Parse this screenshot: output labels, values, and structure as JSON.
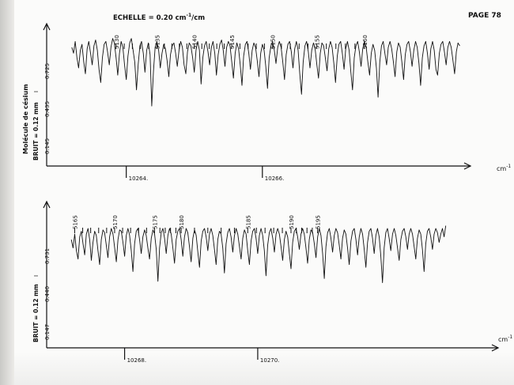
{
  "page": {
    "page_number": "PAGE 78",
    "scale_label": "ECHELLE = 0.20 cm-1/cm",
    "scale_label_parts": {
      "main": "ECHELLE = 0.20 cm",
      "sup": "-1",
      "tail": "/cm"
    },
    "molecule_label": "Molécule de césium"
  },
  "colors": {
    "ink": "#111111",
    "paper": "#fbfbfa"
  },
  "chart_data": [
    {
      "type": "line",
      "panel": "top",
      "x_unit": "cm-1",
      "x_unit_parts": {
        "main": "cm",
        "sup": "-1"
      },
      "x_ticks": [
        {
          "value": 10264,
          "label": "10264."
        },
        {
          "value": 10266,
          "label": "10266."
        }
      ],
      "xlim": [
        10262.9,
        10269.0
      ],
      "y_labels": [
        "0.145",
        "0.435",
        "0.725"
      ],
      "y_marker": "I",
      "noise_label": "BRUIT = 0.12 mm",
      "line_numbers": [
        {
          "label": "5130",
          "x": 10263.85
        },
        {
          "label": "5135",
          "x": 10264.45
        },
        {
          "label": "5140",
          "x": 10265.0
        },
        {
          "label": "5145",
          "x": 10265.55
        },
        {
          "label": "5150",
          "x": 10266.15
        },
        {
          "label": "5155",
          "x": 10266.8
        },
        {
          "label": "5160",
          "x": 10267.5
        }
      ],
      "series": [
        {
          "x_step": 0.025,
          "values": [
            0.62,
            0.58,
            0.66,
            0.55,
            0.48,
            0.6,
            0.64,
            0.52,
            0.44,
            0.61,
            0.66,
            0.58,
            0.5,
            0.63,
            0.67,
            0.6,
            0.47,
            0.38,
            0.55,
            0.64,
            0.66,
            0.59,
            0.5,
            0.62,
            0.68,
            0.65,
            0.55,
            0.43,
            0.58,
            0.66,
            0.62,
            0.5,
            0.4,
            0.56,
            0.65,
            0.68,
            0.6,
            0.52,
            0.33,
            0.5,
            0.63,
            0.66,
            0.58,
            0.45,
            0.6,
            0.65,
            0.57,
            0.22,
            0.46,
            0.62,
            0.66,
            0.6,
            0.48,
            0.58,
            0.64,
            0.61,
            0.53,
            0.42,
            0.57,
            0.63,
            0.65,
            0.58,
            0.49,
            0.6,
            0.66,
            0.62,
            0.5,
            0.44,
            0.59,
            0.65,
            0.63,
            0.55,
            0.45,
            0.6,
            0.66,
            0.6,
            0.37,
            0.55,
            0.63,
            0.66,
            0.59,
            0.5,
            0.62,
            0.66,
            0.58,
            0.43,
            0.57,
            0.64,
            0.67,
            0.6,
            0.49,
            0.62,
            0.66,
            0.63,
            0.52,
            0.41,
            0.58,
            0.65,
            0.61,
            0.5,
            0.36,
            0.56,
            0.64,
            0.66,
            0.58,
            0.47,
            0.6,
            0.65,
            0.62,
            0.53,
            0.42,
            0.58,
            0.64,
            0.6,
            0.49,
            0.34,
            0.55,
            0.63,
            0.66,
            0.6,
            0.51,
            0.62,
            0.66,
            0.62,
            0.52,
            0.4,
            0.57,
            0.64,
            0.66,
            0.59,
            0.48,
            0.61,
            0.66,
            0.6,
            0.44,
            0.3,
            0.52,
            0.63,
            0.66,
            0.59,
            0.48,
            0.6,
            0.65,
            0.61,
            0.5,
            0.41,
            0.58,
            0.65,
            0.63,
            0.55,
            0.46,
            0.61,
            0.66,
            0.62,
            0.51,
            0.38,
            0.56,
            0.64,
            0.66,
            0.58,
            0.47,
            0.61,
            0.66,
            0.6,
            0.45,
            0.33,
            0.55,
            0.63,
            0.66,
            0.59,
            0.49,
            0.61,
            0.66,
            0.62,
            0.52,
            0.43,
            0.58,
            0.64,
            0.6,
            0.48,
            0.28,
            0.52,
            0.63,
            0.66,
            0.58,
            0.5,
            0.62,
            0.66,
            0.61,
            0.52,
            0.42,
            0.59,
            0.65,
            0.62,
            0.52,
            0.4,
            0.57,
            0.64,
            0.66,
            0.59,
            0.49,
            0.6,
            0.66,
            0.62,
            0.51,
            0.36,
            0.55,
            0.63,
            0.66,
            0.58,
            0.47,
            0.61,
            0.66,
            0.6,
            0.47,
            0.43,
            0.58,
            0.64,
            0.66,
            0.59,
            0.5,
            0.62,
            0.66,
            0.62,
            0.53,
            0.44,
            0.59,
            0.65,
            0.63
          ]
        }
      ]
    },
    {
      "type": "line",
      "panel": "bottom",
      "x_unit": "cm-1",
      "x_unit_parts": {
        "main": "cm",
        "sup": "-1"
      },
      "x_ticks": [
        {
          "value": 10268,
          "label": "10268."
        },
        {
          "value": 10270,
          "label": "10270."
        }
      ],
      "xlim": [
        10266.9,
        10272.9
      ],
      "y_labels": [
        "0.147",
        "0.440",
        "0.731"
      ],
      "y_marker": "I",
      "noise_label": "BRUIT = 0.12 mm",
      "line_numbers": [
        {
          "label": "5165",
          "x": 10267.25
        },
        {
          "label": "5170",
          "x": 10267.85
        },
        {
          "label": "5175",
          "x": 10268.45
        },
        {
          "label": "5180",
          "x": 10268.85
        },
        {
          "label": "5185",
          "x": 10269.85
        },
        {
          "label": "5190",
          "x": 10270.5
        },
        {
          "label": "5195",
          "x": 10270.9
        }
      ],
      "series": [
        {
          "x_step": 0.025,
          "values": [
            0.58,
            0.52,
            0.62,
            0.5,
            0.44,
            0.6,
            0.64,
            0.55,
            0.47,
            0.62,
            0.66,
            0.58,
            0.43,
            0.56,
            0.64,
            0.61,
            0.5,
            0.4,
            0.58,
            0.65,
            0.63,
            0.54,
            0.45,
            0.6,
            0.66,
            0.62,
            0.52,
            0.42,
            0.58,
            0.65,
            0.64,
            0.56,
            0.46,
            0.61,
            0.66,
            0.61,
            0.5,
            0.35,
            0.55,
            0.64,
            0.66,
            0.58,
            0.48,
            0.6,
            0.65,
            0.61,
            0.52,
            0.44,
            0.59,
            0.65,
            0.62,
            0.51,
            0.28,
            0.52,
            0.63,
            0.66,
            0.59,
            0.48,
            0.61,
            0.66,
            0.62,
            0.52,
            0.41,
            0.58,
            0.64,
            0.66,
            0.58,
            0.46,
            0.6,
            0.66,
            0.63,
            0.53,
            0.42,
            0.59,
            0.65,
            0.61,
            0.49,
            0.38,
            0.57,
            0.64,
            0.66,
            0.6,
            0.5,
            0.62,
            0.66,
            0.61,
            0.51,
            0.4,
            0.58,
            0.64,
            0.62,
            0.52,
            0.34,
            0.55,
            0.63,
            0.66,
            0.6,
            0.49,
            0.61,
            0.66,
            0.62,
            0.53,
            0.44,
            0.59,
            0.65,
            0.62,
            0.5,
            0.4,
            0.57,
            0.64,
            0.66,
            0.59,
            0.48,
            0.61,
            0.66,
            0.61,
            0.5,
            0.32,
            0.54,
            0.63,
            0.66,
            0.59,
            0.49,
            0.62,
            0.66,
            0.62,
            0.53,
            0.43,
            0.58,
            0.64,
            0.6,
            0.48,
            0.37,
            0.56,
            0.64,
            0.66,
            0.6,
            0.51,
            0.62,
            0.66,
            0.62,
            0.52,
            0.41,
            0.58,
            0.65,
            0.63,
            0.55,
            0.45,
            0.6,
            0.66,
            0.61,
            0.48,
            0.3,
            0.53,
            0.63,
            0.66,
            0.59,
            0.49,
            0.61,
            0.66,
            0.63,
            0.54,
            0.44,
            0.59,
            0.65,
            0.62,
            0.52,
            0.4,
            0.57,
            0.64,
            0.66,
            0.58,
            0.47,
            0.6,
            0.66,
            0.62,
            0.51,
            0.38,
            0.56,
            0.64,
            0.66,
            0.59,
            0.48,
            0.61,
            0.66,
            0.6,
            0.46,
            0.27,
            0.52,
            0.63,
            0.66,
            0.59,
            0.5,
            0.62,
            0.66,
            0.61,
            0.52,
            0.43,
            0.58,
            0.64,
            0.66,
            0.6,
            0.51,
            0.62,
            0.66,
            0.62,
            0.53,
            0.44,
            0.59,
            0.65,
            0.62,
            0.51,
            0.35,
            0.55,
            0.64,
            0.66,
            0.6,
            0.51,
            0.62,
            0.66,
            0.63,
            0.56,
            0.62,
            0.66,
            0.6,
            0.68
          ]
        }
      ]
    }
  ]
}
